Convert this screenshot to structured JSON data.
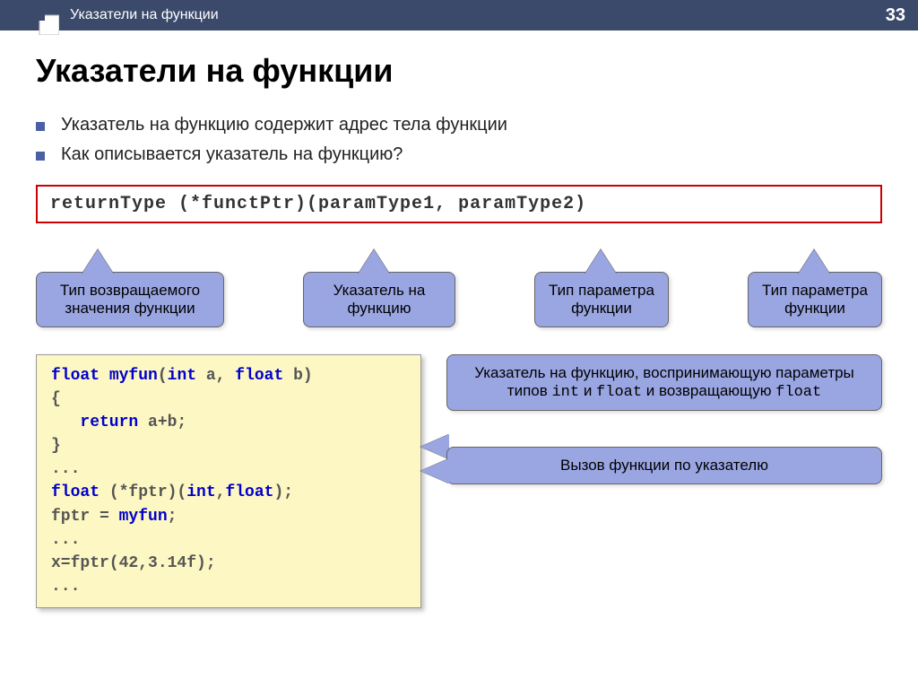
{
  "header": {
    "title": "Указатели на функции",
    "page_number": "33"
  },
  "main_title": "Указатели на функции",
  "bullets": [
    "Указатель на функцию содержит адрес тела функции",
    "Как описывается указатель на функцию?"
  ],
  "syntax_box": "returnType  (*functPtr)(paramType1, paramType2)",
  "callouts_top": [
    "Тип возвращаемого значения функции",
    "Указатель на функцию",
    "Тип параметра функции",
    "Тип параметра функции"
  ],
  "code_example": {
    "lines_html": "<span class='kw'>float</span> <span class='kw'>myfun</span>(<span class='kw'>int</span> a, <span class='kw'>float</span> b)\n{\n   <span class='kw'>return</span> a+b;\n}\n...\n<span class='kw'>float</span> (*fptr)(<span class='kw'>int</span>,<span class='kw'>float</span>);\nfptr = <span class='kw'>myfun</span>;\n...\nx=fptr(42,3.14f);\n..."
  },
  "callouts_right": [
    "Указатель на функцию, воспринимающую параметры типов <span class='mono'>int</span> и <span class='mono'>float</span> и возвращающую <span class='mono'>float</span>",
    "Вызов функции по указателю"
  ],
  "colors": {
    "header_bg": "#3b4a6b",
    "callout_bg": "#9aa6e2",
    "code_yellow_bg": "#fdf7c3",
    "red_border": "#c00",
    "keyword": "#0000cc",
    "bullet": "#4a5fa6"
  }
}
